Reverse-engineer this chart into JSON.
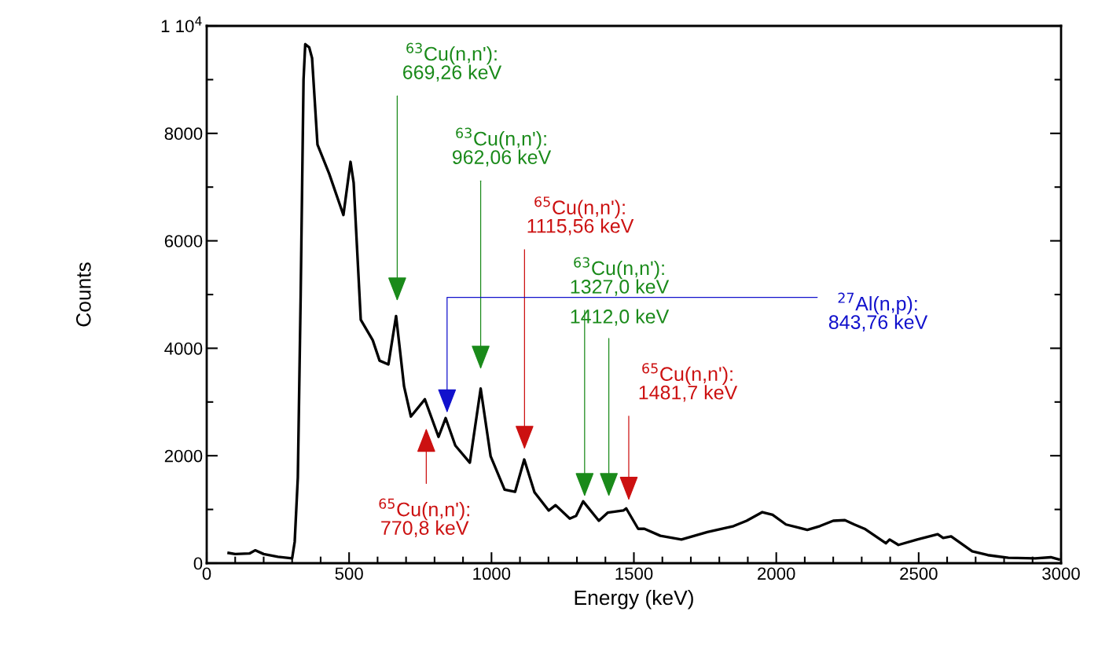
{
  "chart_data": {
    "type": "line",
    "xlabel": "Energy (keV)",
    "ylabel": "Counts",
    "xlim": [
      0,
      3000
    ],
    "xticks": [
      0,
      500,
      1000,
      1500,
      2000,
      2500,
      3000
    ],
    "ylim": [
      0,
      10000
    ],
    "yticks": [
      0,
      2000,
      4000,
      6000,
      8000,
      {
        "value": 10000,
        "label": "1 10$^{4}$"
      }
    ],
    "grid": false,
    "legend": false,
    "marker": "none",
    "line_style": "solid",
    "series": [
      {
        "color": "#000000",
        "x": [
          77,
          100,
          150,
          170,
          200,
          250,
          300,
          309,
          320,
          330,
          340,
          346,
          360,
          370,
          389,
          430,
          480,
          505,
          516,
          541,
          583,
          607,
          638,
          665,
          693,
          717,
          766,
          814,
          839,
          873,
          924,
          962,
          997,
          1046,
          1083,
          1115,
          1151,
          1201,
          1225,
          1275,
          1297,
          1322,
          1377,
          1408,
          1463,
          1473,
          1515,
          1537,
          1593,
          1667,
          1758,
          1850,
          1896,
          1951,
          1987,
          2034,
          2109,
          2153,
          2200,
          2241,
          2274,
          2310,
          2385,
          2398,
          2429,
          2495,
          2567,
          2586,
          2614,
          2688,
          2743,
          2815,
          2909,
          2964,
          2992
        ],
        "values": [
          190,
          170,
          180,
          240,
          170,
          120,
          90,
          400,
          1600,
          5000,
          9000,
          9660,
          9600,
          9400,
          7790,
          7250,
          6480,
          7470,
          7080,
          4530,
          4150,
          3770,
          3700,
          4600,
          3290,
          2730,
          3050,
          2350,
          2700,
          2190,
          1870,
          3250,
          1990,
          1370,
          1330,
          1930,
          1320,
          980,
          1080,
          830,
          880,
          1150,
          790,
          940,
          980,
          1020,
          640,
          640,
          510,
          440,
          580,
          690,
          790,
          950,
          900,
          720,
          620,
          690,
          790,
          800,
          720,
          640,
          370,
          440,
          340,
          440,
          540,
          470,
          500,
          220,
          150,
          100,
          90,
          110,
          70
        ]
      }
    ],
    "annotations": [
      "$^{63}$Cu(n,n'):\n669,26 keV",
      "$^{63}$Cu(n,n'):\n962,06 keV",
      "$^{65}$Cu(n,n'):\n1115,56 keV",
      "$^{63}$Cu(n,n'):\n1327,0 keV",
      "1412,0 keV",
      "$^{27}$Al(n,p):\n843,76 keV",
      "$^{65}$Cu(n,n'):\n1481,7 keV",
      "$^{65}$Cu(n,n'):\n770,8 keV"
    ]
  }
}
